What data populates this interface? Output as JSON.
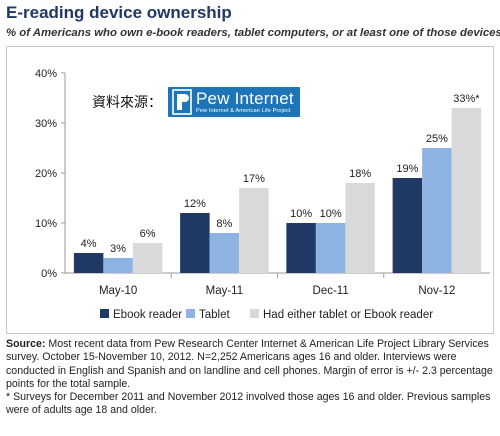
{
  "header": {
    "title": "E-reading device ownership",
    "subtitle": "% of Americans who own e-book readers, tablet computers, or  at least one of those devices"
  },
  "watermark": {
    "label": "資料來源：",
    "logo_main": "Pew Internet",
    "logo_sub": "Pew Internet & American Life Project"
  },
  "chart_data": {
    "type": "bar",
    "categories": [
      "May-10",
      "May-11",
      "Dec-11",
      "Nov-12"
    ],
    "series": [
      {
        "name": "Ebook reader",
        "values": [
          4,
          12,
          10,
          19
        ],
        "labels": [
          "4%",
          "12%",
          "10%",
          "19%"
        ],
        "color": "#1f3864"
      },
      {
        "name": "Tablet",
        "values": [
          3,
          8,
          10,
          25
        ],
        "labels": [
          "3%",
          "8%",
          "10%",
          "25%"
        ],
        "color": "#8db3e2"
      },
      {
        "name": "Had either tablet or Ebook reader",
        "values": [
          6,
          17,
          18,
          33
        ],
        "labels": [
          "6%",
          "17%",
          "18%",
          "33%*"
        ],
        "color": "#d9d9d9"
      }
    ],
    "yticks": [
      "0%",
      "10%",
      "20%",
      "30%",
      "40%"
    ],
    "ylim": [
      0,
      40
    ],
    "legend_position": "bottom",
    "grid": false
  },
  "notes": {
    "source_label": "Source:",
    "source_text": " Most recent data from Pew Research Center Internet & American Life Project Library Services survey. October 15-November 10, 2012. N=2,252 Americans ages 16 and older. Interviews were conducted in English and Spanish and on landline and cell phones. Margin of error is +/- 2.3 percentage points for the total sample.",
    "footnote": "* Surveys for December 2011 and November 2012 involved those ages 16 and older. Previous samples were of adults age 18 and older."
  }
}
